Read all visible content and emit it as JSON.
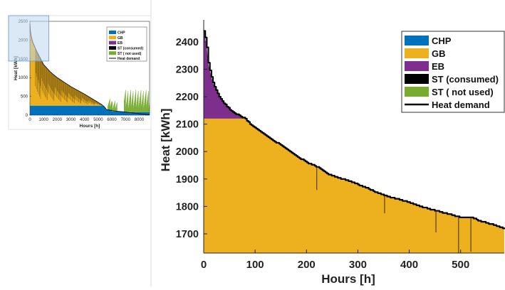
{
  "figure": {
    "divider_color": "#d9d9d9"
  },
  "chart_data": [
    {
      "id": "overview",
      "type": "area",
      "title": "",
      "xlabel": "Hours [h]",
      "ylabel": "Heat [kWh]",
      "xlim": [
        0,
        8760
      ],
      "ylim": [
        0,
        2500
      ],
      "xticks": [
        0,
        1000,
        2000,
        3000,
        4000,
        5000,
        6000,
        7000,
        8000
      ],
      "yticks": [
        0,
        500,
        1000,
        1500,
        2000,
        2500
      ],
      "grid": false,
      "legend_position": "top-right",
      "legend": [
        {
          "name": "CHP",
          "color": "#0072bd"
        },
        {
          "name": "GB",
          "color": "#edb120"
        },
        {
          "name": "EB",
          "color": "#7e2f8e"
        },
        {
          "name": "ST (consumed)",
          "color": "#000000"
        },
        {
          "name": "ST ( not used)",
          "color": "#77ac30"
        },
        {
          "name": "Heat demand",
          "color": "#000000",
          "style": "line"
        }
      ],
      "heat_demand_curve": {
        "x": [
          0,
          50,
          100,
          200,
          500,
          1000,
          1500,
          2000,
          2500,
          3000,
          3500,
          4000,
          4500,
          5000,
          5300,
          5500,
          5600,
          6000,
          6500,
          7000,
          7500,
          8000,
          8760
        ],
        "y": [
          2440,
          2180,
          2100,
          1950,
          1700,
          1350,
          1150,
          1000,
          880,
          760,
          660,
          560,
          450,
          340,
          270,
          200,
          150,
          120,
          100,
          80,
          60,
          40,
          10
        ]
      },
      "chp_output": {
        "x": [
          0,
          5450,
          5450,
          5550,
          5550,
          6000,
          6000,
          7000,
          7000,
          8760
        ],
        "y": [
          250,
          250,
          200,
          200,
          150,
          150,
          100,
          100,
          80,
          80
        ]
      },
      "st_not_used_spikes": [
        {
          "x_from": 5700,
          "x_to": 6400,
          "max": 300
        },
        {
          "x_from": 6900,
          "x_to": 8760,
          "max": 620
        }
      ],
      "zoom_region": {
        "x": [
          0,
          600
        ],
        "y": [
          1630,
          2500
        ],
        "color": "#bdd7ee"
      }
    },
    {
      "id": "zoom",
      "type": "area",
      "title": "",
      "xlabel": "Hours [h]",
      "ylabel": "Heat [kWh]",
      "xlim": [
        0,
        585
      ],
      "ylim": [
        1630,
        2480
      ],
      "xticks": [
        0,
        100,
        200,
        300,
        400,
        500
      ],
      "yticks": [
        1700,
        1800,
        1900,
        2000,
        2100,
        2200,
        2300,
        2400
      ],
      "grid": false,
      "legend_position": "top-right",
      "legend": [
        {
          "name": "CHP",
          "color": "#0072bd"
        },
        {
          "name": "GB",
          "color": "#edb120"
        },
        {
          "name": "EB",
          "color": "#7e2f8e"
        },
        {
          "name": "ST (consumed)",
          "color": "#000000"
        },
        {
          "name": "ST ( not used)",
          "color": "#77ac30"
        },
        {
          "name": "Heat demand",
          "color": "#000000",
          "style": "line"
        }
      ],
      "gb_cap": 2120,
      "heat_demand": {
        "x": [
          0,
          2,
          4,
          6,
          8,
          10,
          15,
          20,
          30,
          40,
          50,
          60,
          70,
          80,
          90,
          100,
          120,
          140,
          160,
          180,
          200,
          220,
          240,
          260,
          280,
          300,
          320,
          340,
          360,
          380,
          400,
          420,
          440,
          460,
          480,
          500,
          520,
          540,
          560,
          585
        ],
        "y": [
          2440,
          2435,
          2400,
          2380,
          2340,
          2310,
          2270,
          2240,
          2200,
          2175,
          2155,
          2140,
          2130,
          2120,
          2100,
          2085,
          2060,
          2035,
          2010,
          1985,
          1960,
          1945,
          1920,
          1905,
          1895,
          1880,
          1865,
          1848,
          1835,
          1825,
          1815,
          1800,
          1790,
          1780,
          1770,
          1760,
          1760,
          1745,
          1735,
          1720
        ]
      },
      "st_consumed_dips": [
        {
          "x": 220,
          "to": 1860
        },
        {
          "x": 352,
          "to": 1775
        },
        {
          "x": 452,
          "to": 1705
        },
        {
          "x": 496,
          "to": 1630
        },
        {
          "x": 520,
          "to": 1635
        }
      ]
    }
  ]
}
